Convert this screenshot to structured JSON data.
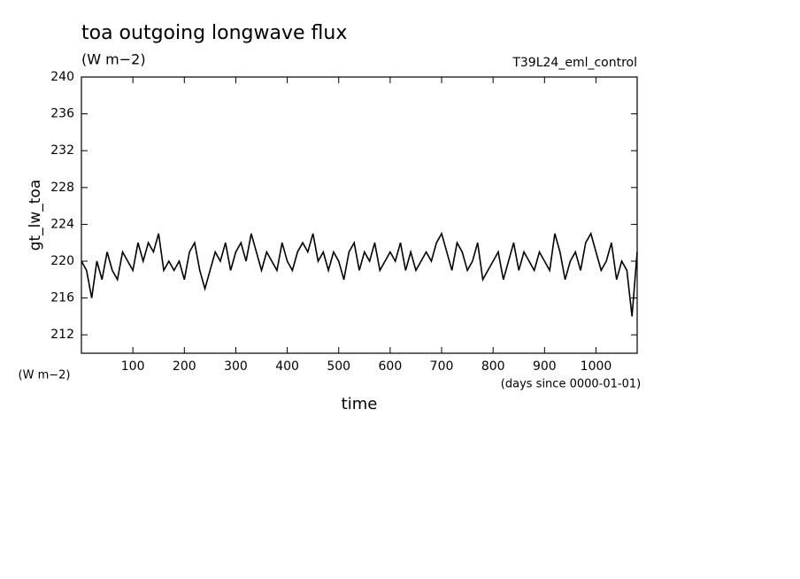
{
  "chart_data": {
    "type": "line",
    "title": "toa outgoing longwave flux",
    "subtitle": "(W m−2)",
    "run_label": "T39L24_eml_control",
    "y_label": "gt_lw_toa",
    "y_units": "(W m−2)",
    "x_label": "time",
    "x_units": "(days since 0000-01-01)",
    "x": [
      0,
      10,
      20,
      30,
      40,
      50,
      60,
      70,
      80,
      90,
      100,
      110,
      120,
      130,
      140,
      150,
      160,
      170,
      180,
      190,
      200,
      210,
      220,
      230,
      240,
      250,
      260,
      270,
      280,
      290,
      300,
      310,
      320,
      330,
      340,
      350,
      360,
      370,
      380,
      390,
      400,
      410,
      420,
      430,
      440,
      450,
      460,
      470,
      480,
      490,
      500,
      510,
      520,
      530,
      540,
      550,
      560,
      570,
      580,
      590,
      600,
      610,
      620,
      630,
      640,
      650,
      660,
      670,
      680,
      690,
      700,
      710,
      720,
      730,
      740,
      750,
      760,
      770,
      780,
      790,
      800,
      810,
      820,
      830,
      840,
      850,
      860,
      870,
      880,
      890,
      900,
      910,
      920,
      930,
      940,
      950,
      960,
      970,
      980,
      990,
      1000,
      1010,
      1020,
      1030,
      1040,
      1050,
      1060,
      1070,
      1080
    ],
    "series": [
      {
        "name": "gt_lw_toa",
        "color": "#000000",
        "values": [
          220,
          219,
          216,
          220,
          218,
          221,
          219,
          218,
          221,
          220,
          219,
          222,
          220,
          222,
          221,
          223,
          219,
          220,
          219,
          220,
          218,
          221,
          222,
          219,
          217,
          219,
          221,
          220,
          222,
          219,
          221,
          222,
          220,
          223,
          221,
          219,
          221,
          220,
          219,
          222,
          220,
          219,
          221,
          222,
          221,
          223,
          220,
          221,
          219,
          221,
          220,
          218,
          221,
          222,
          219,
          221,
          220,
          222,
          219,
          220,
          221,
          220,
          222,
          219,
          221,
          219,
          220,
          221,
          220,
          222,
          223,
          221,
          219,
          222,
          221,
          219,
          220,
          222,
          218,
          219,
          220,
          221,
          218,
          220,
          222,
          219,
          221,
          220,
          219,
          221,
          220,
          219,
          223,
          221,
          218,
          220,
          221,
          219,
          222,
          223,
          221,
          219,
          220,
          222,
          218,
          220,
          219,
          214,
          221
        ]
      }
    ],
    "xlim": [
      0,
      1080
    ],
    "ylim": [
      210,
      240
    ],
    "xticks": [
      100,
      200,
      300,
      400,
      500,
      600,
      700,
      800,
      900,
      1000
    ],
    "yticks": [
      212,
      216,
      220,
      224,
      228,
      232,
      236,
      240
    ]
  }
}
